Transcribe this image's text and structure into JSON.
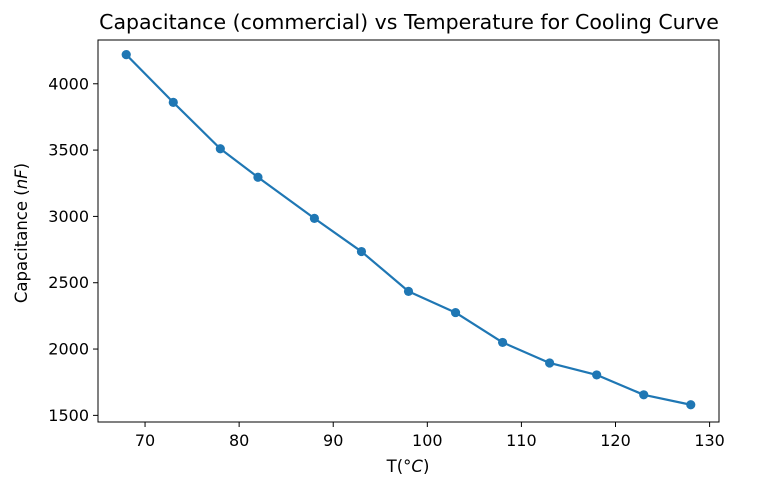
{
  "chart_data": {
    "type": "line",
    "title": "Capacitance (commercial) vs Temperature for Cooling Curve",
    "xlabel": "T(°C)",
    "ylabel": "Capacitance (nF)",
    "xlim": [
      65,
      131
    ],
    "ylim": [
      1450,
      4330
    ],
    "xticks": [
      70,
      80,
      90,
      100,
      110,
      120,
      130
    ],
    "yticks": [
      1500,
      2000,
      2500,
      3000,
      3500,
      4000
    ],
    "grid": false,
    "series": [
      {
        "x": [
          68,
          73,
          78,
          82,
          88,
          93,
          98,
          103,
          108,
          113,
          118,
          123,
          128
        ],
        "values": [
          4220,
          3860,
          3510,
          3295,
          2985,
          2735,
          2435,
          2275,
          2050,
          1895,
          1805,
          1655,
          1580
        ],
        "color": "#1f77b4",
        "marker": "circle"
      }
    ]
  }
}
